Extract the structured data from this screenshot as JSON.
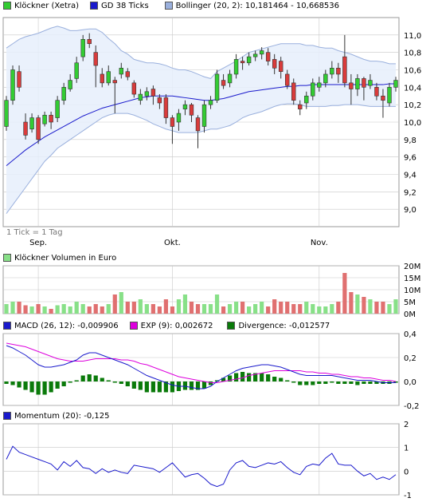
{
  "colors": {
    "up": "#33cc33",
    "down": "#d93b3b",
    "ma": "#1a1acc",
    "band_fill": "#e6eefb",
    "band_line": "#9ab0dd",
    "volume_up": "#88e088",
    "volume_down": "#e07070",
    "macd": "#1a1acc",
    "exp": "#dd00dd",
    "divergence": "#0a7a0a",
    "momentum": "#1a1acc",
    "grid": "#c8c8c8"
  },
  "legends": {
    "price": [
      {
        "label": "Klöckner (Xetra)",
        "color": "#33cc33"
      },
      {
        "label": "GD 38 Ticks",
        "color": "#1a1acc"
      },
      {
        "label": "Bollinger (20, 2): 10,181464 - 10,668536",
        "color": "#9ab0dd"
      }
    ],
    "volume": [
      {
        "label": "Klöckner Volumen in Euro",
        "color": "#88e088"
      }
    ],
    "macd": [
      {
        "label": "MACD (26, 12): -0,009906",
        "color": "#1a1acc"
      },
      {
        "label": "EXP (9): 0,002672",
        "color": "#dd00dd"
      },
      {
        "label": "Divergence: -0,012577",
        "color": "#0a7a0a"
      }
    ],
    "momentum": [
      {
        "label": "Momentum (20): -0,125",
        "color": "#1a1acc"
      }
    ]
  },
  "tick_note": "1 Tick = 1 Tag",
  "months": [
    {
      "label": "Sep.",
      "index": 5
    },
    {
      "label": "Okt.",
      "index": 26
    },
    {
      "label": "Nov.",
      "index": 49
    }
  ],
  "chart_data": [
    {
      "type": "candlestick",
      "title": "Klöckner (Xetra)",
      "ylim": [
        8.8,
        11.2
      ],
      "yticks": [
        "11,0",
        "10,8",
        "10,6",
        "10,4",
        "10,2",
        "10,0",
        "9,8",
        "9,6",
        "9,4",
        "9,2",
        "9,0"
      ],
      "ytick_values": [
        11.0,
        10.8,
        10.6,
        10.4,
        10.2,
        10.0,
        9.8,
        9.6,
        9.4,
        9.2,
        9.0
      ],
      "candles": [
        [
          9.95,
          10.25,
          10.3,
          9.9
        ],
        [
          10.25,
          10.6,
          10.65,
          10.2
        ],
        [
          10.58,
          10.4,
          10.65,
          10.35
        ],
        [
          10.0,
          9.85,
          10.1,
          9.8
        ],
        [
          9.92,
          10.05,
          10.1,
          9.88
        ],
        [
          10.05,
          9.8,
          10.08,
          9.75
        ],
        [
          9.98,
          10.08,
          10.12,
          9.95
        ],
        [
          10.08,
          10.0,
          10.12,
          9.92
        ],
        [
          10.05,
          10.25,
          10.3,
          10.0
        ],
        [
          10.25,
          10.4,
          10.45,
          10.2
        ],
        [
          10.38,
          10.48,
          10.55,
          10.35
        ],
        [
          10.5,
          10.68,
          10.75,
          10.45
        ],
        [
          10.75,
          10.95,
          11.0,
          10.7
        ],
        [
          10.95,
          10.9,
          11.02,
          10.85
        ],
        [
          10.8,
          10.65,
          10.88,
          10.4
        ],
        [
          10.55,
          10.45,
          10.62,
          10.4
        ],
        [
          10.45,
          10.58,
          10.65,
          10.42
        ],
        [
          10.48,
          10.45,
          10.52,
          10.1
        ],
        [
          10.55,
          10.62,
          10.68,
          10.5
        ],
        [
          10.58,
          10.52,
          10.62,
          10.48
        ],
        [
          10.45,
          10.32,
          10.48,
          10.28
        ],
        [
          10.25,
          10.32,
          10.38,
          10.2
        ],
        [
          10.3,
          10.35,
          10.4,
          10.25
        ],
        [
          10.38,
          10.3,
          10.42,
          10.2
        ],
        [
          10.28,
          10.22,
          10.32,
          10.15
        ],
        [
          10.28,
          10.05,
          10.32,
          9.98
        ],
        [
          10.05,
          9.95,
          10.08,
          9.75
        ],
        [
          10.0,
          10.1,
          10.15,
          9.9
        ],
        [
          10.15,
          10.2,
          10.25,
          10.08
        ],
        [
          10.2,
          10.08,
          10.22,
          10.0
        ],
        [
          10.05,
          9.9,
          10.08,
          9.7
        ],
        [
          9.95,
          10.2,
          10.25,
          9.88
        ],
        [
          10.2,
          10.25,
          10.3,
          10.15
        ],
        [
          10.25,
          10.55,
          10.6,
          10.22
        ],
        [
          10.48,
          10.42,
          10.55,
          10.38
        ],
        [
          10.45,
          10.55,
          10.6,
          10.4
        ],
        [
          10.55,
          10.72,
          10.78,
          10.5
        ],
        [
          10.7,
          10.68,
          10.75,
          10.6
        ],
        [
          10.68,
          10.75,
          10.8,
          10.65
        ],
        [
          10.75,
          10.78,
          10.82,
          10.7
        ],
        [
          10.78,
          10.82,
          10.86,
          10.72
        ],
        [
          10.8,
          10.7,
          10.85,
          10.65
        ],
        [
          10.72,
          10.62,
          10.78,
          10.55
        ],
        [
          10.7,
          10.58,
          10.75,
          10.5
        ],
        [
          10.55,
          10.42,
          10.6,
          10.38
        ],
        [
          10.45,
          10.25,
          10.5,
          10.2
        ],
        [
          10.2,
          10.15,
          10.25,
          10.08
        ],
        [
          10.22,
          10.3,
          10.35,
          10.15
        ],
        [
          10.3,
          10.45,
          10.5,
          10.25
        ],
        [
          10.4,
          10.45,
          10.52,
          10.35
        ],
        [
          10.45,
          10.55,
          10.6,
          10.4
        ],
        [
          10.55,
          10.62,
          10.7,
          10.5
        ],
        [
          10.62,
          10.55,
          10.68,
          10.45
        ],
        [
          10.75,
          10.45,
          11.0,
          10.4
        ],
        [
          10.45,
          10.38,
          10.55,
          10.2
        ],
        [
          10.38,
          10.5,
          10.55,
          10.3
        ],
        [
          10.5,
          10.4,
          10.52,
          10.25
        ],
        [
          10.42,
          10.48,
          10.55,
          10.38
        ],
        [
          10.4,
          10.3,
          10.45,
          10.25
        ],
        [
          10.3,
          10.25,
          10.38,
          10.05
        ],
        [
          10.22,
          10.4,
          10.45,
          10.18
        ],
        [
          10.4,
          10.48,
          10.52,
          10.35
        ]
      ],
      "ma38": [
        9.5,
        9.56,
        9.62,
        9.68,
        9.73,
        9.78,
        9.83,
        9.87,
        9.91,
        9.95,
        9.99,
        10.03,
        10.07,
        10.1,
        10.13,
        10.16,
        10.18,
        10.2,
        10.22,
        10.24,
        10.26,
        10.28,
        10.29,
        10.3,
        10.3,
        10.3,
        10.3,
        10.29,
        10.28,
        10.27,
        10.26,
        10.25,
        10.25,
        10.26,
        10.27,
        10.29,
        10.31,
        10.33,
        10.35,
        10.36,
        10.37,
        10.38,
        10.39,
        10.4,
        10.41,
        10.41,
        10.42,
        10.42,
        10.43,
        10.43,
        10.43,
        10.43,
        10.43,
        10.43,
        10.43,
        10.43,
        10.43,
        10.43,
        10.43,
        10.43,
        10.44,
        10.44
      ],
      "boll_upper": [
        10.85,
        10.9,
        10.95,
        10.98,
        11.0,
        11.02,
        11.05,
        11.08,
        11.1,
        11.08,
        11.05,
        11.05,
        11.06,
        11.07,
        11.07,
        11.03,
        10.96,
        10.9,
        10.82,
        10.78,
        10.72,
        10.7,
        10.68,
        10.68,
        10.67,
        10.65,
        10.62,
        10.6,
        10.6,
        10.58,
        10.55,
        10.52,
        10.5,
        10.58,
        10.62,
        10.66,
        10.7,
        10.75,
        10.8,
        10.82,
        10.84,
        10.86,
        10.88,
        10.9,
        10.9,
        10.9,
        10.9,
        10.88,
        10.88,
        10.86,
        10.85,
        10.85,
        10.82,
        10.8,
        10.78,
        10.75,
        10.72,
        10.7,
        10.7,
        10.69,
        10.67,
        10.67
      ],
      "boll_lower": [
        8.95,
        9.05,
        9.15,
        9.25,
        9.35,
        9.45,
        9.55,
        9.62,
        9.7,
        9.75,
        9.8,
        9.85,
        9.9,
        9.95,
        10.0,
        10.05,
        10.08,
        10.1,
        10.1,
        10.1,
        10.08,
        10.05,
        10.02,
        9.98,
        9.95,
        9.92,
        9.9,
        9.88,
        9.88,
        9.88,
        9.88,
        9.9,
        9.92,
        9.92,
        9.94,
        9.96,
        10.0,
        10.05,
        10.08,
        10.1,
        10.12,
        10.15,
        10.18,
        10.2,
        10.21,
        10.21,
        10.2,
        10.18,
        10.18,
        10.18,
        10.18,
        10.19,
        10.19,
        10.2,
        10.2,
        10.2,
        10.19,
        10.18,
        10.18,
        10.18,
        10.18,
        10.18
      ]
    },
    {
      "type": "bar",
      "title": "Klöckner Volumen in Euro",
      "ylim": [
        0,
        20
      ],
      "yticks": [
        "20M",
        "15M",
        "10M",
        "5M",
        "0M"
      ],
      "ytick_values": [
        20,
        15,
        10,
        5,
        0
      ],
      "values": [
        4,
        5,
        5,
        3.5,
        3,
        4,
        3,
        2,
        3.5,
        4,
        3,
        5,
        4,
        3,
        4,
        3,
        4,
        8,
        9,
        5,
        5,
        6,
        4,
        4,
        3,
        6,
        3,
        6,
        8,
        5,
        4,
        4,
        4,
        8,
        3,
        4,
        5,
        5,
        3,
        4,
        5,
        3,
        6,
        5,
        5,
        4,
        4,
        5,
        4,
        3,
        3,
        4,
        5,
        17,
        9,
        8,
        7,
        6,
        5,
        5,
        4,
        6
      ]
    },
    {
      "type": "bar+line",
      "title": "MACD (26, 12)",
      "ylim": [
        -0.2,
        0.4
      ],
      "yticks": [
        "0,4",
        "0,2",
        "0,0",
        "-0,2"
      ],
      "ytick_values": [
        0.4,
        0.2,
        0.0,
        -0.2
      ],
      "series": [
        {
          "name": "MACD (26, 12)",
          "values": [
            0.3,
            0.28,
            0.25,
            0.22,
            0.18,
            0.14,
            0.12,
            0.12,
            0.13,
            0.14,
            0.16,
            0.18,
            0.22,
            0.24,
            0.24,
            0.22,
            0.2,
            0.18,
            0.16,
            0.14,
            0.11,
            0.08,
            0.05,
            0.03,
            0.01,
            -0.01,
            -0.03,
            -0.04,
            -0.04,
            -0.05,
            -0.06,
            -0.06,
            -0.04,
            0.0,
            0.03,
            0.06,
            0.09,
            0.11,
            0.12,
            0.13,
            0.14,
            0.14,
            0.13,
            0.12,
            0.1,
            0.08,
            0.06,
            0.05,
            0.05,
            0.05,
            0.05,
            0.05,
            0.04,
            0.03,
            0.02,
            0.01,
            0.01,
            0.01,
            0.0,
            -0.01,
            -0.01,
            -0.01
          ]
        },
        {
          "name": "EXP (9)",
          "values": [
            0.32,
            0.31,
            0.3,
            0.29,
            0.27,
            0.25,
            0.23,
            0.21,
            0.19,
            0.18,
            0.17,
            0.17,
            0.17,
            0.18,
            0.19,
            0.19,
            0.19,
            0.19,
            0.18,
            0.18,
            0.17,
            0.15,
            0.14,
            0.12,
            0.1,
            0.08,
            0.06,
            0.04,
            0.03,
            0.02,
            0.01,
            0.0,
            -0.01,
            -0.01,
            0.0,
            0.01,
            0.02,
            0.03,
            0.05,
            0.06,
            0.07,
            0.08,
            0.09,
            0.09,
            0.09,
            0.09,
            0.09,
            0.08,
            0.08,
            0.07,
            0.07,
            0.06,
            0.06,
            0.05,
            0.04,
            0.04,
            0.03,
            0.03,
            0.02,
            0.01,
            0.01,
            0.0
          ]
        },
        {
          "name": "Divergence",
          "values": [
            -0.02,
            -0.03,
            -0.05,
            -0.07,
            -0.09,
            -0.11,
            -0.11,
            -0.09,
            -0.06,
            -0.04,
            -0.01,
            0.01,
            0.05,
            0.06,
            0.05,
            0.03,
            0.01,
            -0.01,
            -0.02,
            -0.04,
            -0.06,
            -0.07,
            -0.09,
            -0.09,
            -0.09,
            -0.09,
            -0.09,
            -0.08,
            -0.07,
            -0.07,
            -0.07,
            -0.06,
            -0.03,
            0.01,
            0.03,
            0.05,
            0.07,
            0.08,
            0.07,
            0.07,
            0.07,
            0.06,
            0.04,
            0.03,
            0.01,
            -0.01,
            -0.03,
            -0.03,
            -0.03,
            -0.02,
            -0.02,
            -0.01,
            -0.02,
            -0.02,
            -0.02,
            -0.03,
            -0.02,
            -0.02,
            -0.02,
            -0.02,
            -0.02,
            -0.01
          ]
        }
      ]
    },
    {
      "type": "line",
      "title": "Momentum (20)",
      "ylim": [
        -1,
        2
      ],
      "yticks": [
        "2",
        "1",
        "0",
        "-1"
      ],
      "ytick_values": [
        2,
        1,
        0,
        -1
      ],
      "values": [
        0.5,
        1.05,
        0.8,
        0.7,
        0.6,
        0.5,
        0.4,
        0.3,
        0.05,
        0.4,
        0.2,
        0.45,
        0.15,
        0.1,
        -0.1,
        0.1,
        -0.05,
        0.05,
        -0.05,
        -0.1,
        0.25,
        0.2,
        0.15,
        0.1,
        -0.05,
        0.15,
        0.35,
        0.05,
        -0.25,
        -0.15,
        -0.1,
        -0.3,
        -0.55,
        -0.65,
        -0.55,
        0.05,
        0.35,
        0.45,
        0.2,
        0.15,
        0.25,
        0.35,
        0.3,
        0.4,
        0.15,
        -0.05,
        -0.15,
        0.2,
        0.3,
        0.25,
        0.55,
        0.75,
        0.3,
        0.25,
        0.25,
        0.0,
        -0.2,
        -0.1,
        -0.35,
        -0.25,
        -0.35,
        -0.15
      ]
    }
  ]
}
